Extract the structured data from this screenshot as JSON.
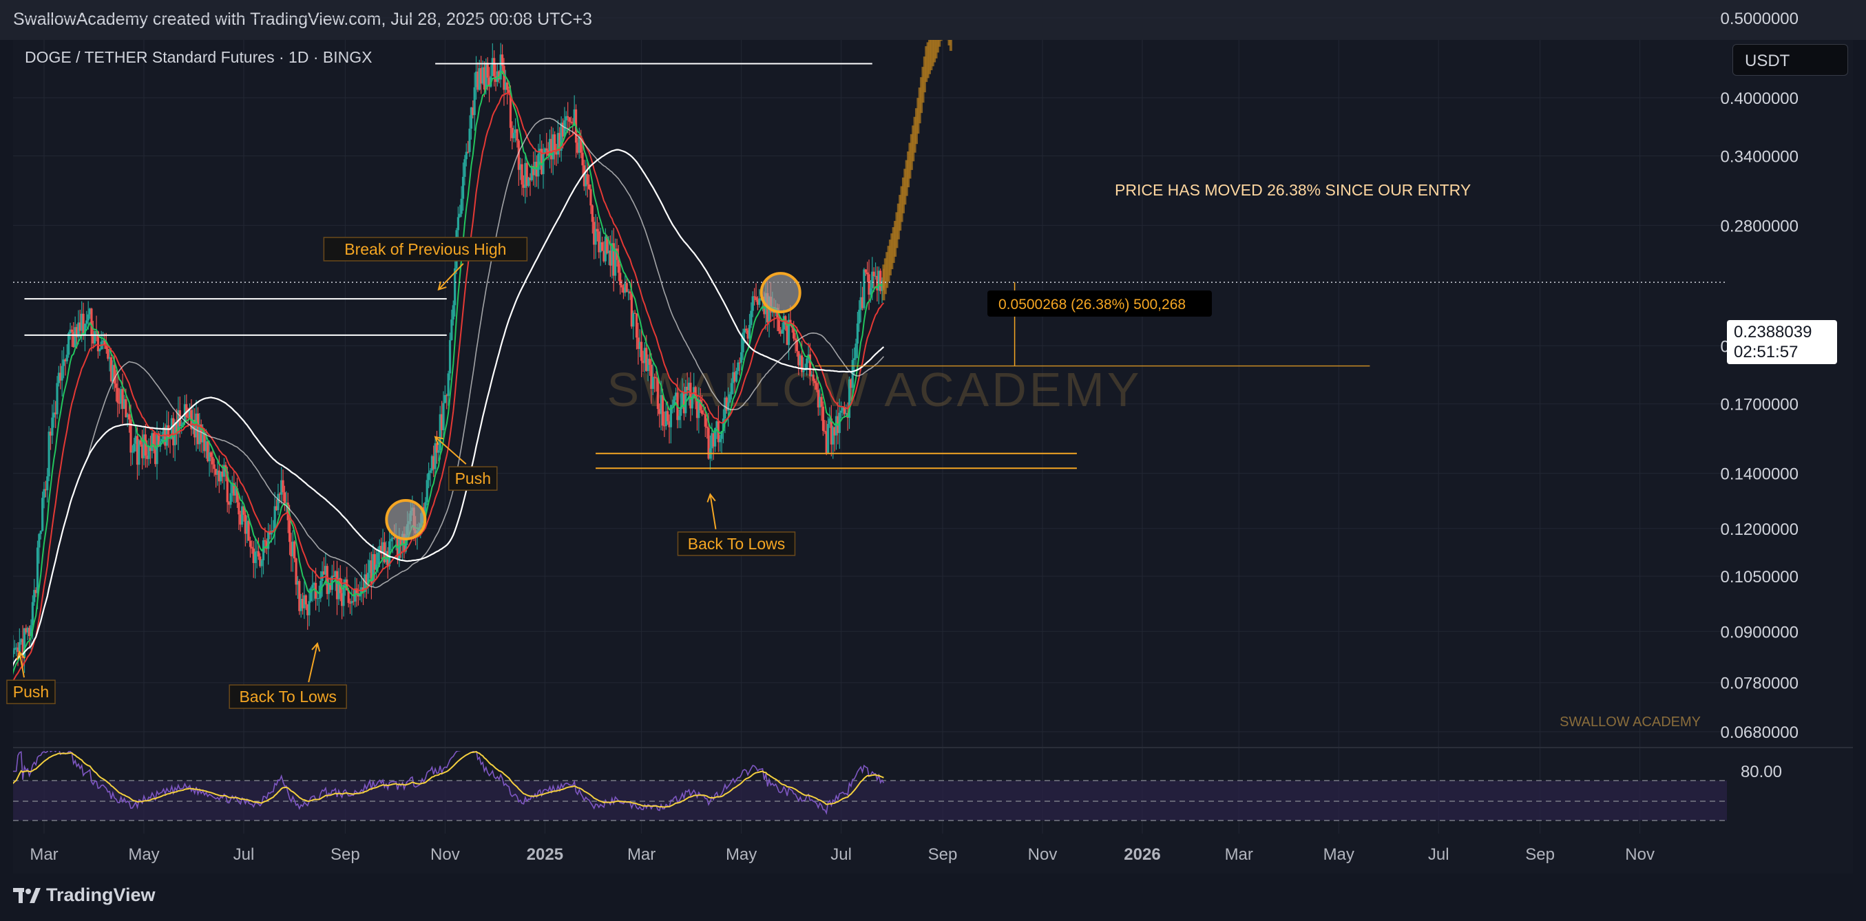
{
  "header": {
    "attribution": "SwallowAcademy created with TradingView.com, Jul 28, 2025 00:08 UTC+3"
  },
  "symbol_title": "DOGE / TETHER Standard Futures · 1D · BINGX",
  "currency_button": "USDT",
  "last_price": {
    "price": "0.2388039",
    "countdown": "02:51:57"
  },
  "footer": {
    "brand": "TradingView"
  },
  "colors": {
    "up": "#26a69a",
    "down": "#ef5350",
    "accent": "#f5a623",
    "ema_fast": "#22c55e",
    "ema_mid": "#e53935",
    "ma": "#e0e0e0"
  },
  "chart_data": {
    "type": "candlestick",
    "title": "DOGE / TETHER Standard Futures · 1D · BINGX",
    "y_scale": "log",
    "ylim": [
      0.062,
      0.56
    ],
    "price_ticks": [
      "0.5000000",
      "0.4000000",
      "0.3400000",
      "0.2800000",
      "0.2000000",
      "0.1700000",
      "0.1400000",
      "0.1200000",
      "0.1050000",
      "0.0900000",
      "0.0780000",
      "0.0680000"
    ],
    "x_ticks": [
      "Mar",
      "May",
      "Jul",
      "Sep",
      "Nov",
      "2025",
      "Mar",
      "May",
      "Jul",
      "Sep",
      "Nov",
      "2026",
      "Mar",
      "May",
      "Jul",
      "Sep",
      "Nov"
    ],
    "price_path": [
      [
        "2024-02-08",
        0.08
      ],
      [
        "2024-02-22",
        0.09
      ],
      [
        "2024-03-05",
        0.16
      ],
      [
        "2024-03-15",
        0.2
      ],
      [
        "2024-03-28",
        0.215
      ],
      [
        "2024-04-10",
        0.19
      ],
      [
        "2024-04-25",
        0.15
      ],
      [
        "2024-05-10",
        0.15
      ],
      [
        "2024-05-28",
        0.165
      ],
      [
        "2024-06-10",
        0.15
      ],
      [
        "2024-06-25",
        0.13
      ],
      [
        "2024-07-10",
        0.11
      ],
      [
        "2024-07-25",
        0.135
      ],
      [
        "2024-08-05",
        0.095
      ],
      [
        "2024-08-20",
        0.105
      ],
      [
        "2024-09-05",
        0.098
      ],
      [
        "2024-09-20",
        0.11
      ],
      [
        "2024-10-05",
        0.115
      ],
      [
        "2024-10-20",
        0.13
      ],
      [
        "2024-11-01",
        0.17
      ],
      [
        "2024-11-10",
        0.3
      ],
      [
        "2024-11-20",
        0.42
      ],
      [
        "2024-12-05",
        0.44
      ],
      [
        "2024-12-18",
        0.32
      ],
      [
        "2025-01-01",
        0.34
      ],
      [
        "2025-01-18",
        0.38
      ],
      [
        "2025-02-01",
        0.27
      ],
      [
        "2025-02-15",
        0.25
      ],
      [
        "2025-03-01",
        0.2
      ],
      [
        "2025-03-15",
        0.165
      ],
      [
        "2025-04-01",
        0.175
      ],
      [
        "2025-04-12",
        0.15
      ],
      [
        "2025-04-25",
        0.175
      ],
      [
        "2025-05-10",
        0.23
      ],
      [
        "2025-05-25",
        0.215
      ],
      [
        "2025-06-10",
        0.19
      ],
      [
        "2025-06-22",
        0.155
      ],
      [
        "2025-07-05",
        0.17
      ],
      [
        "2025-07-15",
        0.24
      ],
      [
        "2025-07-27",
        0.239
      ]
    ],
    "levels": [
      {
        "price": 0.485,
        "from": "2024-10-26",
        "to": "2025-07-20",
        "color": "white"
      },
      {
        "price": 0.44,
        "from": "2024-10-26",
        "to": "2025-07-20",
        "color": "white"
      },
      {
        "price": 0.228,
        "from": "2024-02-18",
        "to": "2024-11-02",
        "color": "white"
      },
      {
        "price": 0.206,
        "from": "2024-02-18",
        "to": "2024-11-02",
        "color": "white"
      },
      {
        "price": 0.148,
        "from": "2025-02-01",
        "to": "2025-11-22",
        "color": "orange"
      },
      {
        "price": 0.142,
        "from": "2025-02-01",
        "to": "2025-11-22",
        "color": "orange"
      }
    ],
    "projection": [
      [
        "2025-07-27",
        0.239
      ],
      [
        "2025-08-03",
        0.27
      ],
      [
        "2025-08-10",
        0.32
      ],
      [
        "2025-08-16",
        0.37
      ],
      [
        "2025-08-22",
        0.44
      ],
      [
        "2025-08-28",
        0.47
      ],
      [
        "2025-09-02",
        0.51
      ],
      [
        "2025-09-06",
        0.48
      ]
    ],
    "annotations": [
      {
        "text": "Break of Previous High",
        "date": "2024-10-20",
        "price": 0.262
      },
      {
        "text": "Push",
        "date": "2024-11-18",
        "price": 0.138
      },
      {
        "text": "Push",
        "date": "2024-02-22",
        "price": 0.076
      },
      {
        "text": "Back To Lows",
        "date": "2024-07-28",
        "price": 0.075
      },
      {
        "text": "Back To Lows",
        "date": "2025-04-28",
        "price": 0.115
      }
    ],
    "measure_label": "0.0500268 (26.38%) 500,268",
    "note": "PRICE HAS MOVED 26.38% SINCE OUR ENTRY",
    "watermark": "SWALLOW ACADEMY",
    "corner_mark": "SWALLOW ACADEMY",
    "rsi": {
      "level_label": "80.00"
    }
  }
}
